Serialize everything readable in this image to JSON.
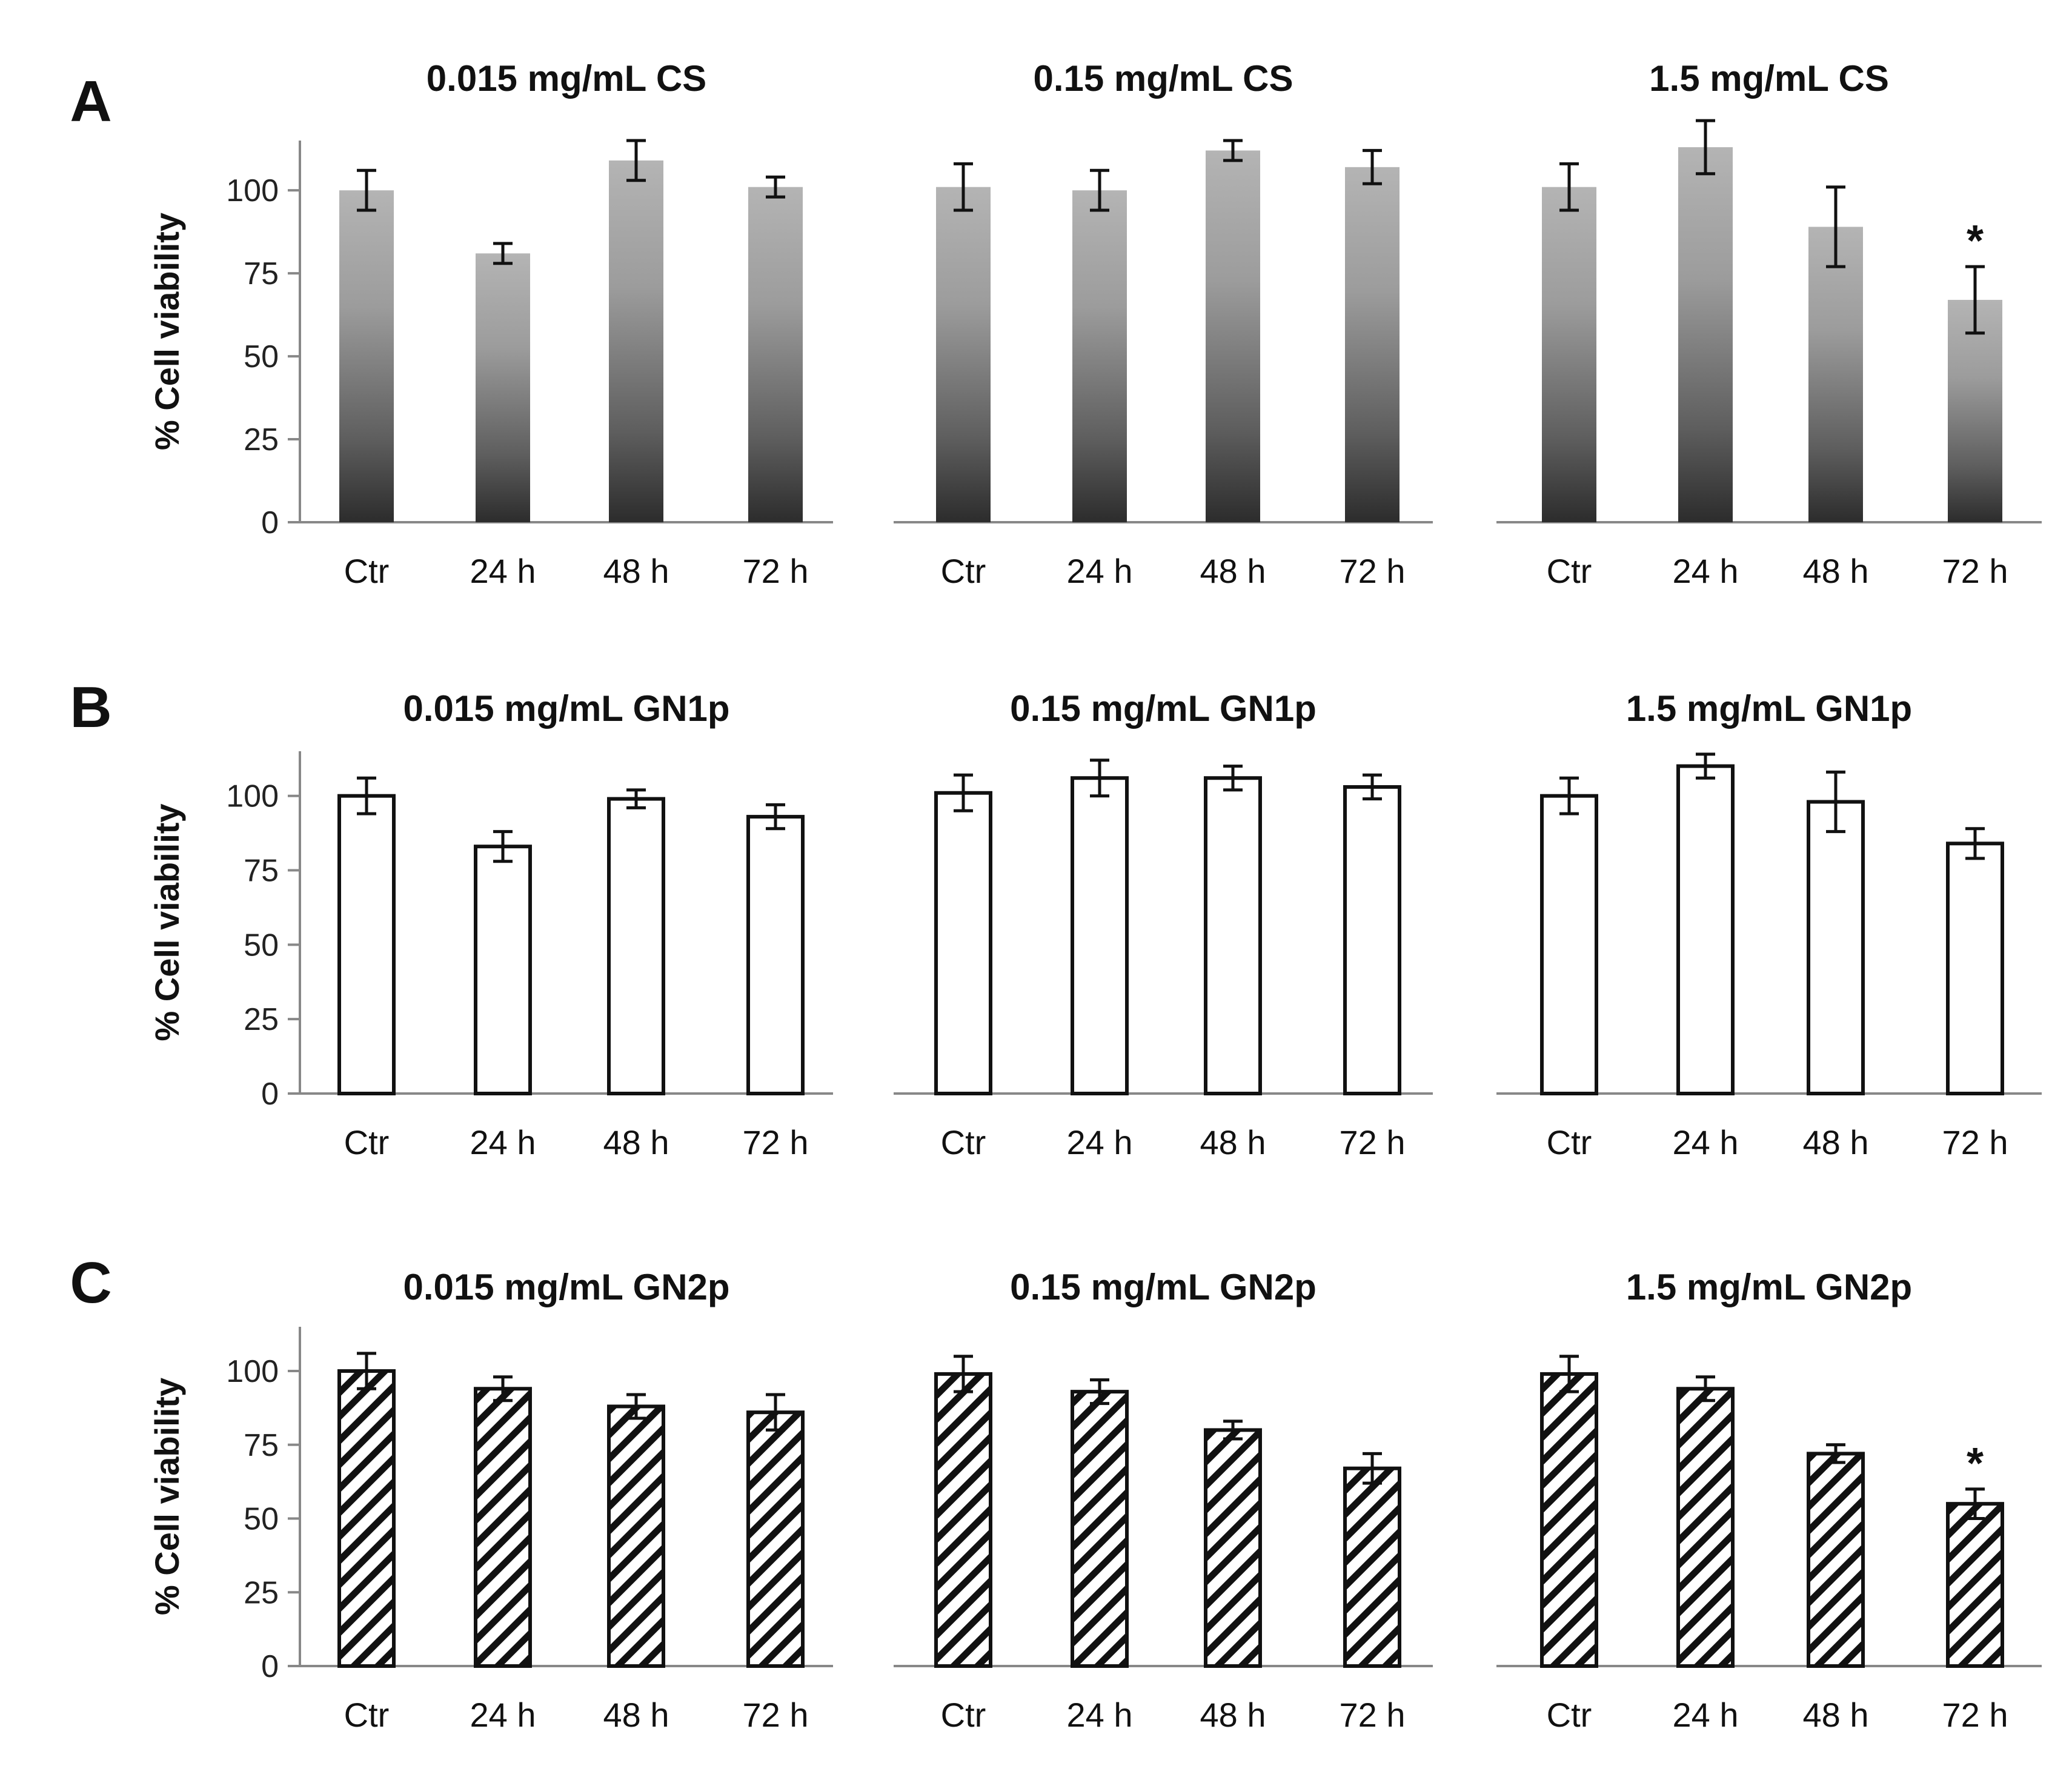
{
  "panels": [
    {
      "letter": "A",
      "ylabel": "% Cell viability",
      "style": "gradient",
      "charts": [
        {
          "title": "0.015 mg/mL  CS",
          "type": "bar",
          "categories": [
            "Ctr",
            "24 h",
            "48 h",
            "72 h"
          ],
          "values": [
            100,
            81,
            109,
            101
          ],
          "errors": [
            6,
            3,
            6,
            3
          ],
          "significant": [
            false,
            false,
            false,
            false
          ],
          "ylim": [
            0,
            115
          ],
          "yticks": [
            0,
            25,
            50,
            75,
            100
          ]
        },
        {
          "title": "0.15 mg/mL  CS",
          "type": "bar",
          "categories": [
            "Ctr",
            "24 h",
            "48 h",
            "72 h"
          ],
          "values": [
            101,
            100,
            112,
            107
          ],
          "errors": [
            7,
            6,
            3,
            5
          ],
          "significant": [
            false,
            false,
            false,
            false
          ],
          "ylim": [
            0,
            115
          ],
          "yticks": [
            0,
            25,
            50,
            75,
            100
          ]
        },
        {
          "title": "1.5 mg/mL  CS",
          "type": "bar",
          "categories": [
            "Ctr",
            "24 h",
            "48 h",
            "72 h"
          ],
          "values": [
            101,
            113,
            89,
            67
          ],
          "errors": [
            7,
            8,
            12,
            10
          ],
          "significant": [
            false,
            false,
            false,
            true
          ],
          "ylim": [
            0,
            115
          ],
          "yticks": [
            0,
            25,
            50,
            75,
            100
          ]
        }
      ]
    },
    {
      "letter": "B",
      "ylabel": "% Cell viability",
      "style": "white",
      "charts": [
        {
          "title": "0.015 mg/mL  GN1p",
          "type": "bar",
          "categories": [
            "Ctr",
            "24 h",
            "48 h",
            "72 h"
          ],
          "values": [
            100,
            83,
            99,
            93
          ],
          "errors": [
            6,
            5,
            3,
            4
          ],
          "significant": [
            false,
            false,
            false,
            false
          ],
          "ylim": [
            0,
            115
          ],
          "yticks": [
            0,
            25,
            50,
            75,
            100
          ]
        },
        {
          "title": "0.15 mg/mL  GN1p",
          "type": "bar",
          "categories": [
            "Ctr",
            "24 h",
            "48 h",
            "72 h"
          ],
          "values": [
            101,
            106,
            106,
            103
          ],
          "errors": [
            6,
            6,
            4,
            4
          ],
          "significant": [
            false,
            false,
            false,
            false
          ],
          "ylim": [
            0,
            115
          ],
          "yticks": [
            0,
            25,
            50,
            75,
            100
          ]
        },
        {
          "title": "1.5 mg/mL  GN1p",
          "type": "bar",
          "categories": [
            "Ctr",
            "24 h",
            "48 h",
            "72 h"
          ],
          "values": [
            100,
            110,
            98,
            84
          ],
          "errors": [
            6,
            4,
            10,
            5
          ],
          "significant": [
            false,
            false,
            false,
            false
          ],
          "ylim": [
            0,
            115
          ],
          "yticks": [
            0,
            25,
            50,
            75,
            100
          ]
        }
      ]
    },
    {
      "letter": "C",
      "ylabel": "% Cell viability",
      "style": "hatched",
      "charts": [
        {
          "title": "0.015 mg/mL  GN2p",
          "type": "bar",
          "categories": [
            "Ctr",
            "24 h",
            "48 h",
            "72 h"
          ],
          "values": [
            100,
            94,
            88,
            86
          ],
          "errors": [
            6,
            4,
            4,
            6
          ],
          "significant": [
            false,
            false,
            false,
            false
          ],
          "ylim": [
            0,
            115
          ],
          "yticks": [
            0,
            25,
            50,
            75,
            100
          ]
        },
        {
          "title": "0.15 mg/mL  GN2p",
          "type": "bar",
          "categories": [
            "Ctr",
            "24 h",
            "48 h",
            "72 h"
          ],
          "values": [
            99,
            93,
            80,
            67
          ],
          "errors": [
            6,
            4,
            3,
            5
          ],
          "significant": [
            false,
            false,
            false,
            false
          ],
          "ylim": [
            0,
            115
          ],
          "yticks": [
            0,
            25,
            50,
            75,
            100
          ]
        },
        {
          "title": "1.5 mg/mL  GN2p",
          "type": "bar",
          "categories": [
            "Ctr",
            "24 h",
            "48 h",
            "72 h"
          ],
          "values": [
            99,
            94,
            72,
            55
          ],
          "errors": [
            6,
            4,
            3,
            5
          ],
          "significant": [
            false,
            false,
            false,
            true
          ],
          "ylim": [
            0,
            115
          ],
          "yticks": [
            0,
            25,
            50,
            75,
            100
          ]
        }
      ]
    }
  ],
  "significance_marker": "*"
}
